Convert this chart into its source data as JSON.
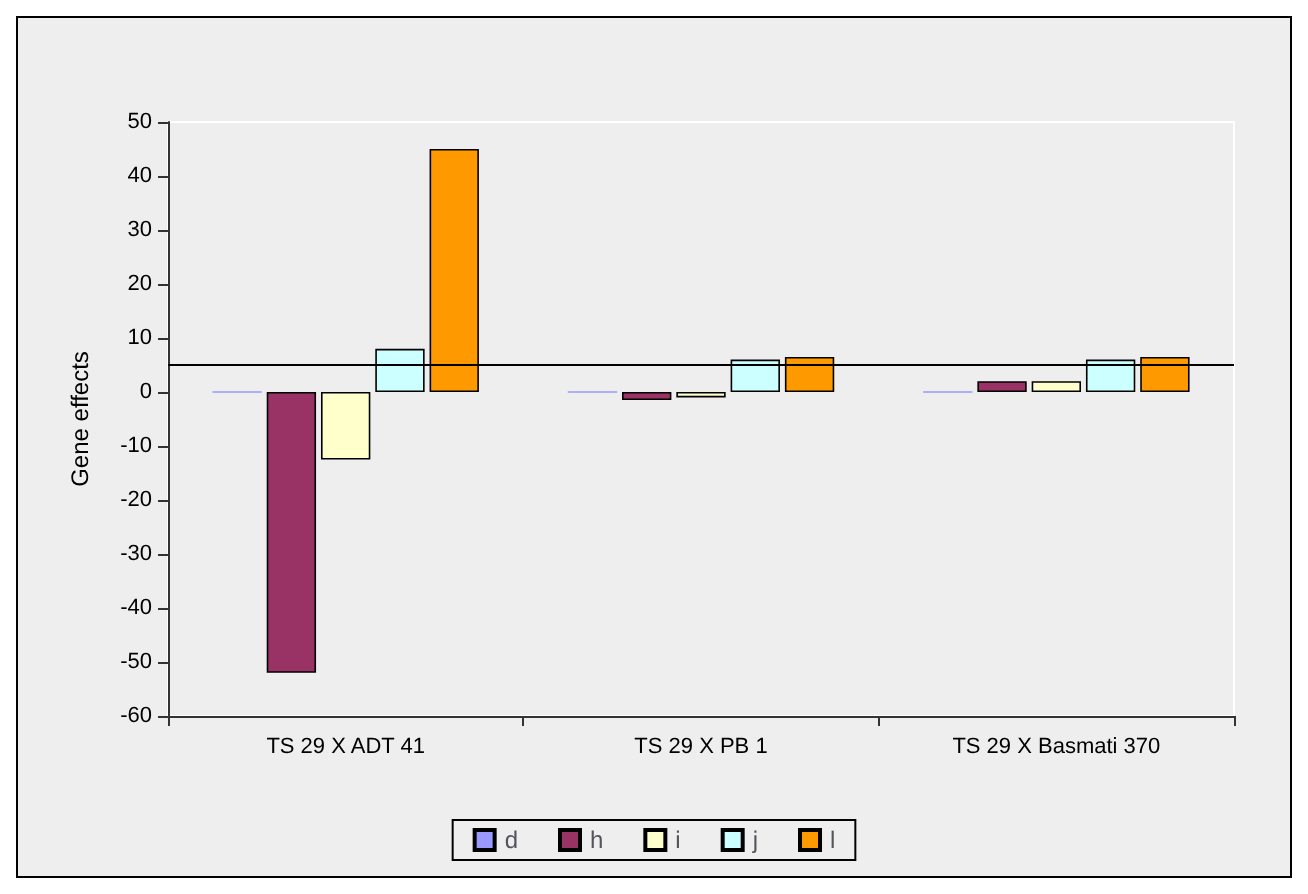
{
  "chart_data": {
    "type": "bar",
    "ylabel": "Gene effects",
    "categories": [
      "TS 29 X ADT 41",
      "TS 29 X PB 1",
      "TS 29 X Basmati 370"
    ],
    "series": [
      {
        "name": "d",
        "color": "#9999ff",
        "values": [
          0,
          0,
          0
        ]
      },
      {
        "name": "h",
        "color": "#993366",
        "values": [
          -52,
          -1.5,
          2
        ]
      },
      {
        "name": "i",
        "color": "#ffffcc",
        "values": [
          -12.5,
          -1,
          2
        ]
      },
      {
        "name": "j",
        "color": "#ccffff",
        "values": [
          8,
          6,
          6
        ]
      },
      {
        "name": "l",
        "color": "#ff9900",
        "values": [
          45,
          6.5,
          6.5
        ]
      }
    ],
    "ylim": [
      -60,
      50
    ],
    "yticks": [
      -60,
      -50,
      -40,
      -30,
      -20,
      -10,
      0,
      10,
      20,
      30,
      40,
      50
    ],
    "ref_lines": [
      {
        "axis": "y",
        "value": 5
      }
    ],
    "grid": false,
    "legend": "bottom"
  }
}
